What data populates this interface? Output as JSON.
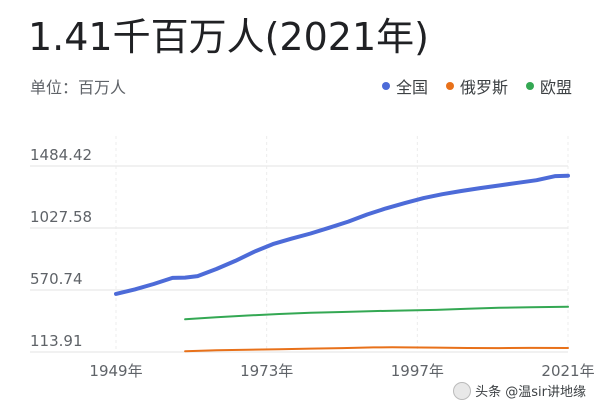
{
  "header": {
    "value_text": "1.41千百万人(2021年)",
    "unit_label": "单位：百万人"
  },
  "watermark": {
    "text": "头条 @温sir讲地缘"
  },
  "chart_data": {
    "type": "line",
    "title": "",
    "xlabel": "",
    "ylabel": "",
    "y_ticks": [
      "1484.42",
      "1027.58",
      "570.74",
      "113.91"
    ],
    "y_tick_values": [
      1484.42,
      1027.58,
      570.74,
      113.91
    ],
    "ylim": [
      113.91,
      1484.42
    ],
    "x_ticks": [
      "1949年",
      "1973年",
      "1997年",
      "2021年"
    ],
    "x_tick_values": [
      1949,
      1973,
      1997,
      2021
    ],
    "xlim": [
      1949,
      2021
    ],
    "grid": true,
    "legend_position": "top-right",
    "series": [
      {
        "name": "全国",
        "color": "#4d6bd8",
        "x": [
          1949,
          1952,
          1955,
          1958,
          1960,
          1962,
          1965,
          1968,
          1971,
          1974,
          1977,
          1980,
          1983,
          1986,
          1989,
          1992,
          1995,
          1998,
          2001,
          2004,
          2007,
          2010,
          2013,
          2016,
          2019,
          2021
        ],
        "values": [
          541.67,
          574.82,
          614.65,
          659.94,
          662.07,
          672.95,
          725.38,
          785.34,
          852.29,
          908.59,
          949.74,
          987.05,
          1030.08,
          1075.07,
          1127.04,
          1171.71,
          1211.21,
          1247.61,
          1276.27,
          1299.88,
          1321.29,
          1340.91,
          1360.72,
          1379.86,
          1410.08,
          1412.6
        ]
      },
      {
        "name": "俄罗斯",
        "color": "#e8711a",
        "x": [
          1960,
          1965,
          1970,
          1975,
          1980,
          1985,
          1990,
          1993,
          1995,
          2000,
          2005,
          2010,
          2015,
          2021
        ],
        "values": [
          119.9,
          126.5,
          130.4,
          134.2,
          139.0,
          142.9,
          147.7,
          148.5,
          148.1,
          146.6,
          143.5,
          142.8,
          144.1,
          143.4
        ]
      },
      {
        "name": "欧盟",
        "color": "#34a853",
        "x": [
          1960,
          1965,
          1970,
          1975,
          1980,
          1985,
          1990,
          1995,
          2000,
          2005,
          2010,
          2015,
          2021
        ],
        "values": [
          355.0,
          370.0,
          383.0,
          394.0,
          403.0,
          409.0,
          415.0,
          420.0,
          424.0,
          433.0,
          440.0,
          443.0,
          447.0
        ]
      }
    ]
  }
}
